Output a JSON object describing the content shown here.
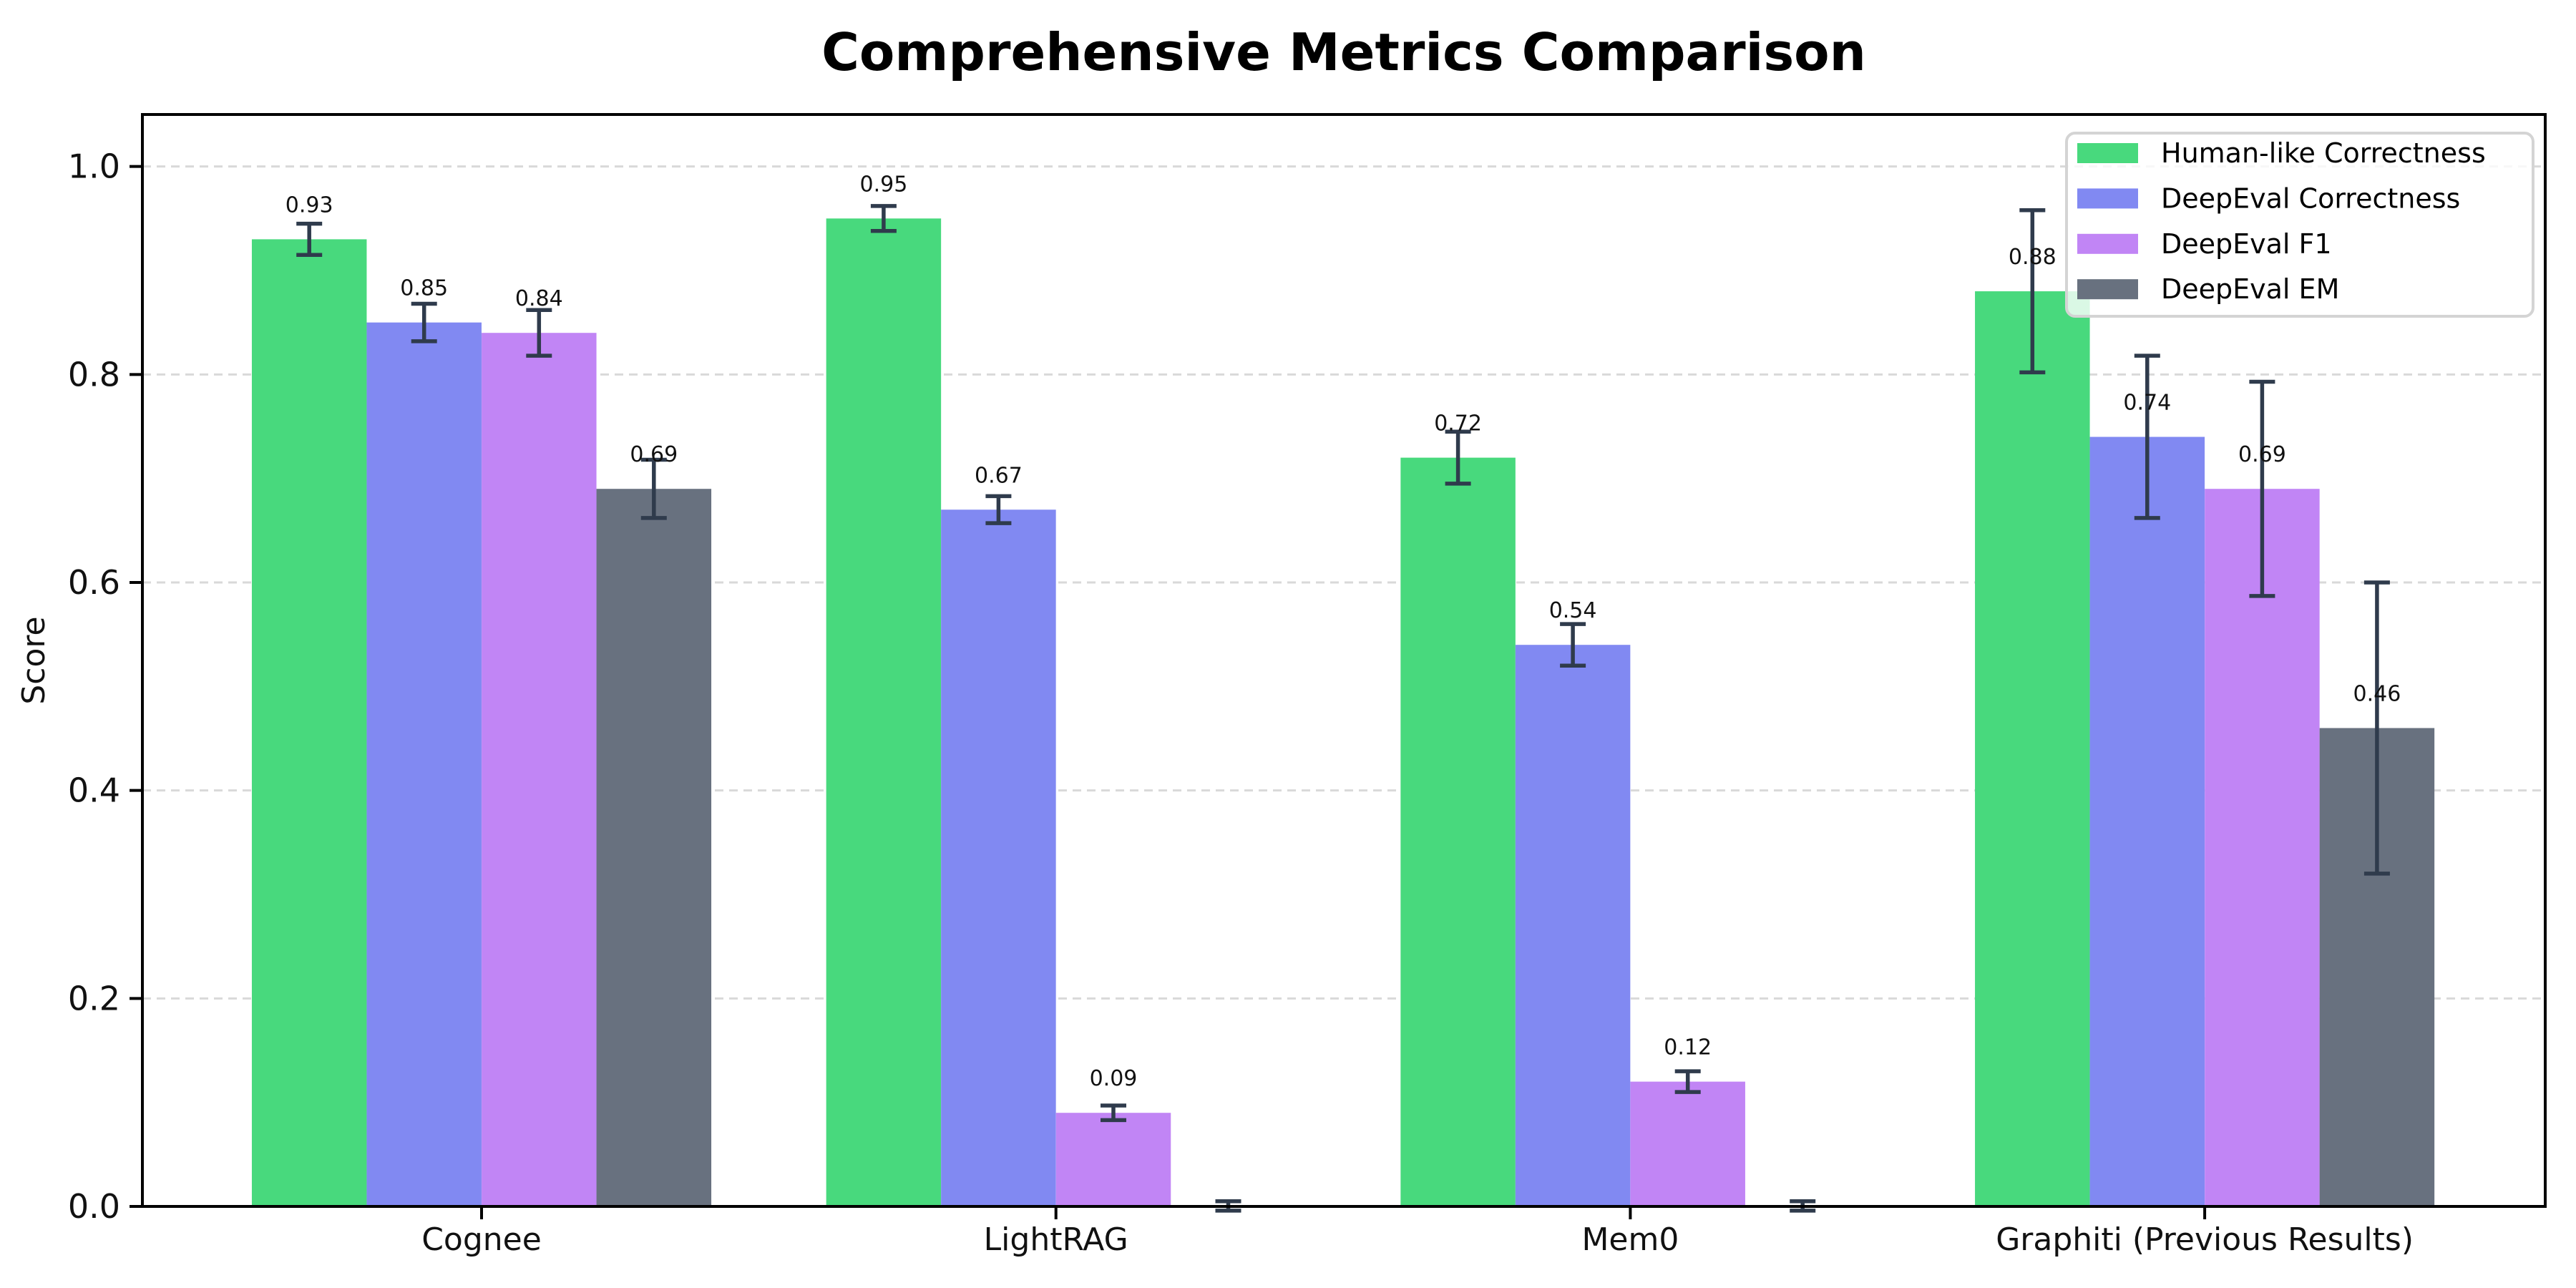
{
  "figure": {
    "background": "#ffffff"
  },
  "chart_data": {
    "type": "bar",
    "title": "Comprehensive Metrics Comparison",
    "ylabel": "Score",
    "xlabel": "",
    "categories": [
      "Cognee",
      "LightRAG",
      "Mem0",
      "Graphiti (Previous Results)"
    ],
    "series": [
      {
        "name": "Human-like Correctness",
        "color": "#48d97d",
        "values": [
          0.93,
          0.95,
          0.72,
          0.88
        ],
        "errors": [
          0.015,
          0.012,
          0.025,
          0.078
        ],
        "labels": [
          "0.93",
          "0.95",
          "0.72",
          "0.88"
        ]
      },
      {
        "name": "DeepEval Correctness",
        "color": "#8189f2",
        "values": [
          0.85,
          0.67,
          0.54,
          0.74
        ],
        "errors": [
          0.018,
          0.013,
          0.02,
          0.078
        ],
        "labels": [
          "0.85",
          "0.67",
          "0.54",
          "0.74"
        ]
      },
      {
        "name": "DeepEval F1",
        "color": "#c185f5",
        "values": [
          0.84,
          0.09,
          0.12,
          0.69
        ],
        "errors": [
          0.022,
          0.007,
          0.01,
          0.103
        ],
        "labels": [
          "0.84",
          "0.09",
          "0.12",
          "0.69"
        ]
      },
      {
        "name": "DeepEval EM",
        "color": "#68717f",
        "values": [
          0.69,
          0.0,
          0.0,
          0.46
        ],
        "errors": [
          0.028,
          0.005,
          0.005,
          0.14
        ],
        "labels": [
          "0.69",
          "",
          "",
          "0.46"
        ]
      }
    ],
    "yticks": [
      "0.0",
      "0.2",
      "0.4",
      "0.6",
      "0.8",
      "1.0"
    ],
    "ylim": [
      0,
      1.05
    ],
    "grid": {
      "axis": "y",
      "style": "dashed",
      "color": "#d9d9d9"
    },
    "legend": {
      "position": "upper-right"
    },
    "error_bar_color": "#2f3b4c",
    "axis_color": "#000000",
    "text_color": "#111111"
  }
}
